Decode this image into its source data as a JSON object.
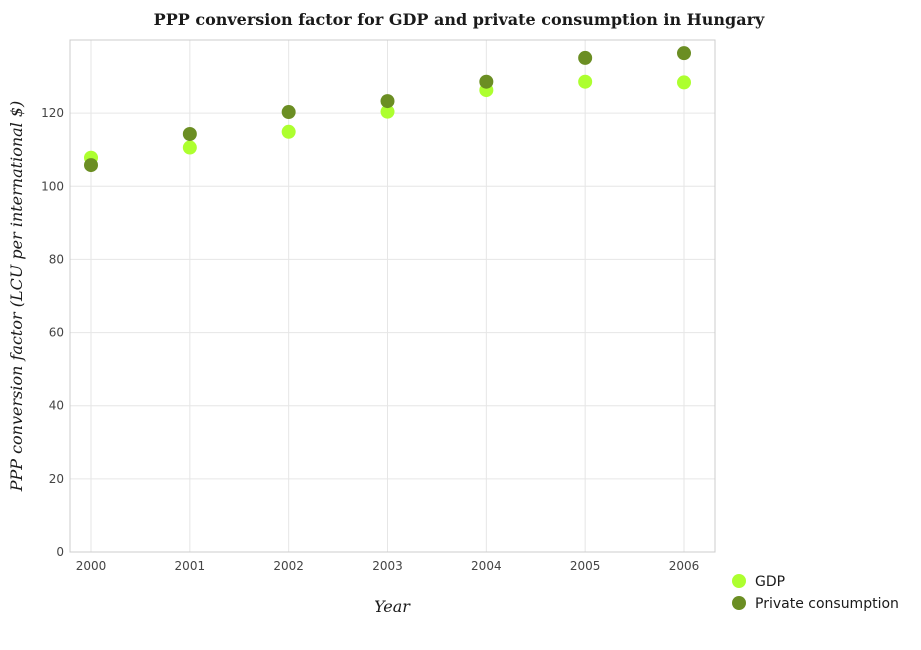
{
  "chart_data": {
    "type": "scatter",
    "title": "PPP conversion factor for GDP and private consumption in Hungary",
    "xlabel": "Year",
    "ylabel": "PPP conversion factor (LCU per international $)",
    "categories": [
      "2000",
      "2001",
      "2002",
      "2003",
      "2004",
      "2005",
      "2006"
    ],
    "ylim": [
      0,
      140
    ],
    "yticks": [
      0,
      20,
      40,
      60,
      80,
      100,
      120
    ],
    "grid": true,
    "legend_position": "bottom-right",
    "series": [
      {
        "name": "GDP",
        "color": "#adff2f",
        "values": [
          107.8,
          110.6,
          114.9,
          120.4,
          126.3,
          128.6,
          128.4
        ]
      },
      {
        "name": " Private consumption",
        "color": "#6b8e23",
        "values": [
          105.8,
          114.3,
          120.3,
          123.3,
          128.6,
          135.1,
          136.4
        ]
      }
    ]
  }
}
